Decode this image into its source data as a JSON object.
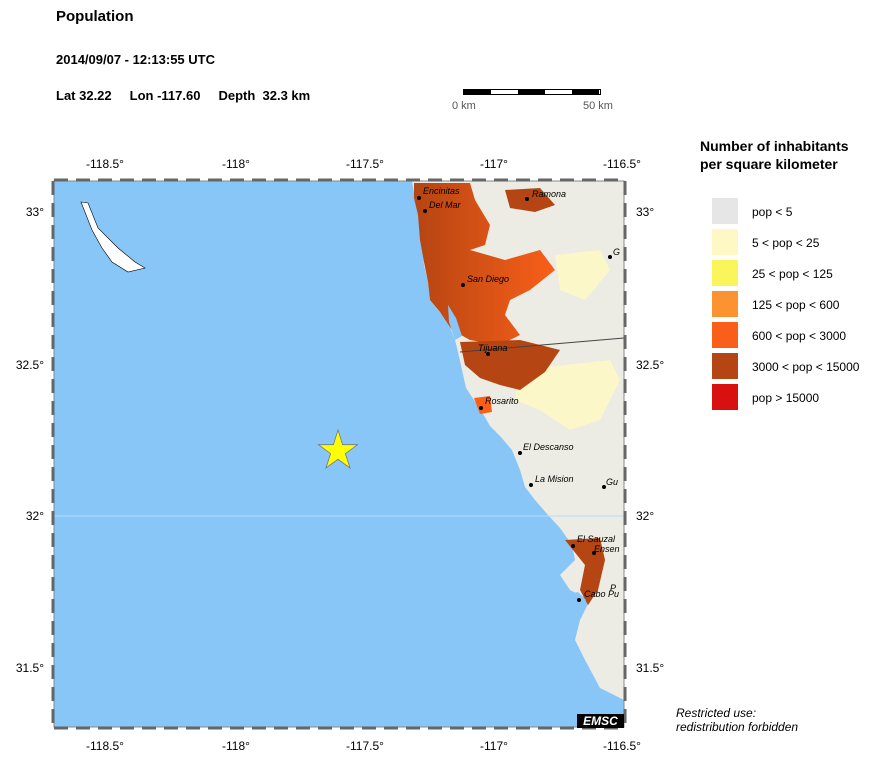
{
  "header": {
    "title": "Population",
    "datetime": "2014/09/07 - 12:13:55 UTC",
    "lat": "Lat 32.22",
    "lon": "Lon -117.60",
    "depth": "Depth  32.3 km"
  },
  "scale": {
    "start": "0 km",
    "end": "50 km"
  },
  "map": {
    "lon_ticks": [
      "-118.5°",
      "-118°",
      "-117.5°",
      "-117°",
      "-116.5°"
    ],
    "lat_ticks": [
      "33°",
      "32.5°",
      "32°",
      "31.5°"
    ],
    "cities": [
      "Encinitas",
      "Del Mar",
      "Ramona",
      "San Diego",
      "Tijuana",
      "Rosarito",
      "El Descanso",
      "La Mision",
      "El Sauzal",
      "Ensen",
      "Cabo Pu",
      "Gu",
      "G",
      "P"
    ],
    "epicenter_icon": "star-icon",
    "water_color": "#87c6f7"
  },
  "legend": {
    "title_line1": "Number of inhabitants",
    "title_line2": "per square kilometer",
    "items": [
      {
        "label": "pop < 5",
        "color": "#e6e6e6"
      },
      {
        "label": "5 < pop < 25",
        "color": "#fdf8c4"
      },
      {
        "label": "25 < pop < 125",
        "color": "#fbf55c"
      },
      {
        "label": "125 < pop < 600",
        "color": "#fb9430"
      },
      {
        "label": "600 < pop < 3000",
        "color": "#f95f19"
      },
      {
        "label": "3000 < pop < 15000",
        "color": "#b54512"
      },
      {
        "label": "pop > 15000",
        "color": "#d91010"
      }
    ]
  },
  "footer": {
    "restricted_line1": "Restricted use:",
    "restricted_line2": "redistribution forbidden",
    "logo": "EMSC"
  }
}
